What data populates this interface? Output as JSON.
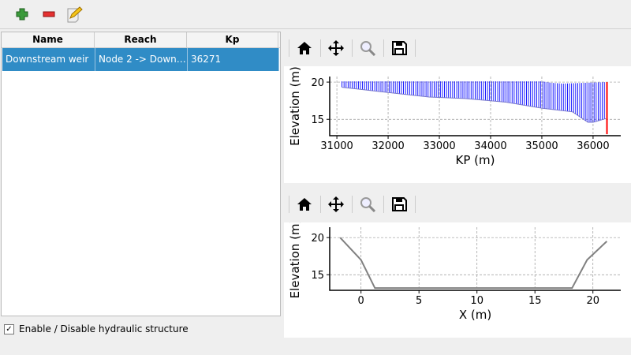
{
  "toolbar": {
    "items": [
      {
        "icon": "add-icon"
      },
      {
        "icon": "remove-icon"
      },
      {
        "icon": "edit-icon"
      }
    ]
  },
  "table": {
    "columns": [
      "Name",
      "Reach",
      "Kp"
    ],
    "rows": [
      [
        "Downstream weir",
        "Node 2 -> Down…",
        "36271"
      ]
    ],
    "selected_color": "#308cc6"
  },
  "checkbox": {
    "label": "Enable / Disable hydraulic structure",
    "checked": true,
    "mark": "✓"
  },
  "plot_toolbar": {
    "items": [
      "home-icon",
      "pan-icon",
      "zoom-icon",
      "save-icon"
    ]
  },
  "chart_data": [
    {
      "type": "line",
      "xlabel": "KP (m)",
      "ylabel": "Elevation (m)",
      "xlim": [
        30860,
        36540
      ],
      "ylim": [
        12.8,
        20.75
      ],
      "xticks": [
        "31000",
        "32000",
        "33000",
        "34000",
        "35000",
        "36000"
      ],
      "xtick_values": [
        31000,
        32000,
        33000,
        34000,
        35000,
        36000
      ],
      "yticks": [
        "15",
        "20"
      ],
      "ytick_values": [
        15,
        20
      ],
      "grid": true,
      "bed": [
        [
          31100,
          19.3
        ],
        [
          32000,
          18.6
        ],
        [
          32800,
          18.0
        ],
        [
          33500,
          17.8
        ],
        [
          34300,
          17.3
        ],
        [
          35000,
          16.5
        ],
        [
          35600,
          16.0
        ],
        [
          35900,
          14.6
        ],
        [
          36000,
          14.6
        ],
        [
          36250,
          15.1
        ]
      ],
      "surface": [
        [
          31100,
          20.1
        ],
        [
          35000,
          20.1
        ],
        [
          35200,
          19.9
        ],
        [
          35400,
          19.8
        ],
        [
          36250,
          20.0
        ]
      ],
      "structure": {
        "kp": 36271,
        "range": [
          13.0,
          20.0
        ],
        "color": "#ff0000"
      },
      "section_color": "#0000ff"
    },
    {
      "type": "line",
      "xlabel": "X (m)",
      "ylabel": "Elevation (m)",
      "xlim": [
        -2.7,
        22.4
      ],
      "ylim": [
        12.9,
        21.4
      ],
      "xticks": [
        "0",
        "5",
        "10",
        "15",
        "20"
      ],
      "xtick_values": [
        0,
        5,
        10,
        15,
        20
      ],
      "yticks": [
        "15",
        "20"
      ],
      "ytick_values": [
        15,
        20
      ],
      "grid": true,
      "x": [
        -1.8,
        0,
        1.2,
        18.2,
        19.5,
        21.2
      ],
      "y": [
        20,
        17,
        13.2,
        13.2,
        17,
        19.5
      ],
      "color": "#808080"
    }
  ]
}
